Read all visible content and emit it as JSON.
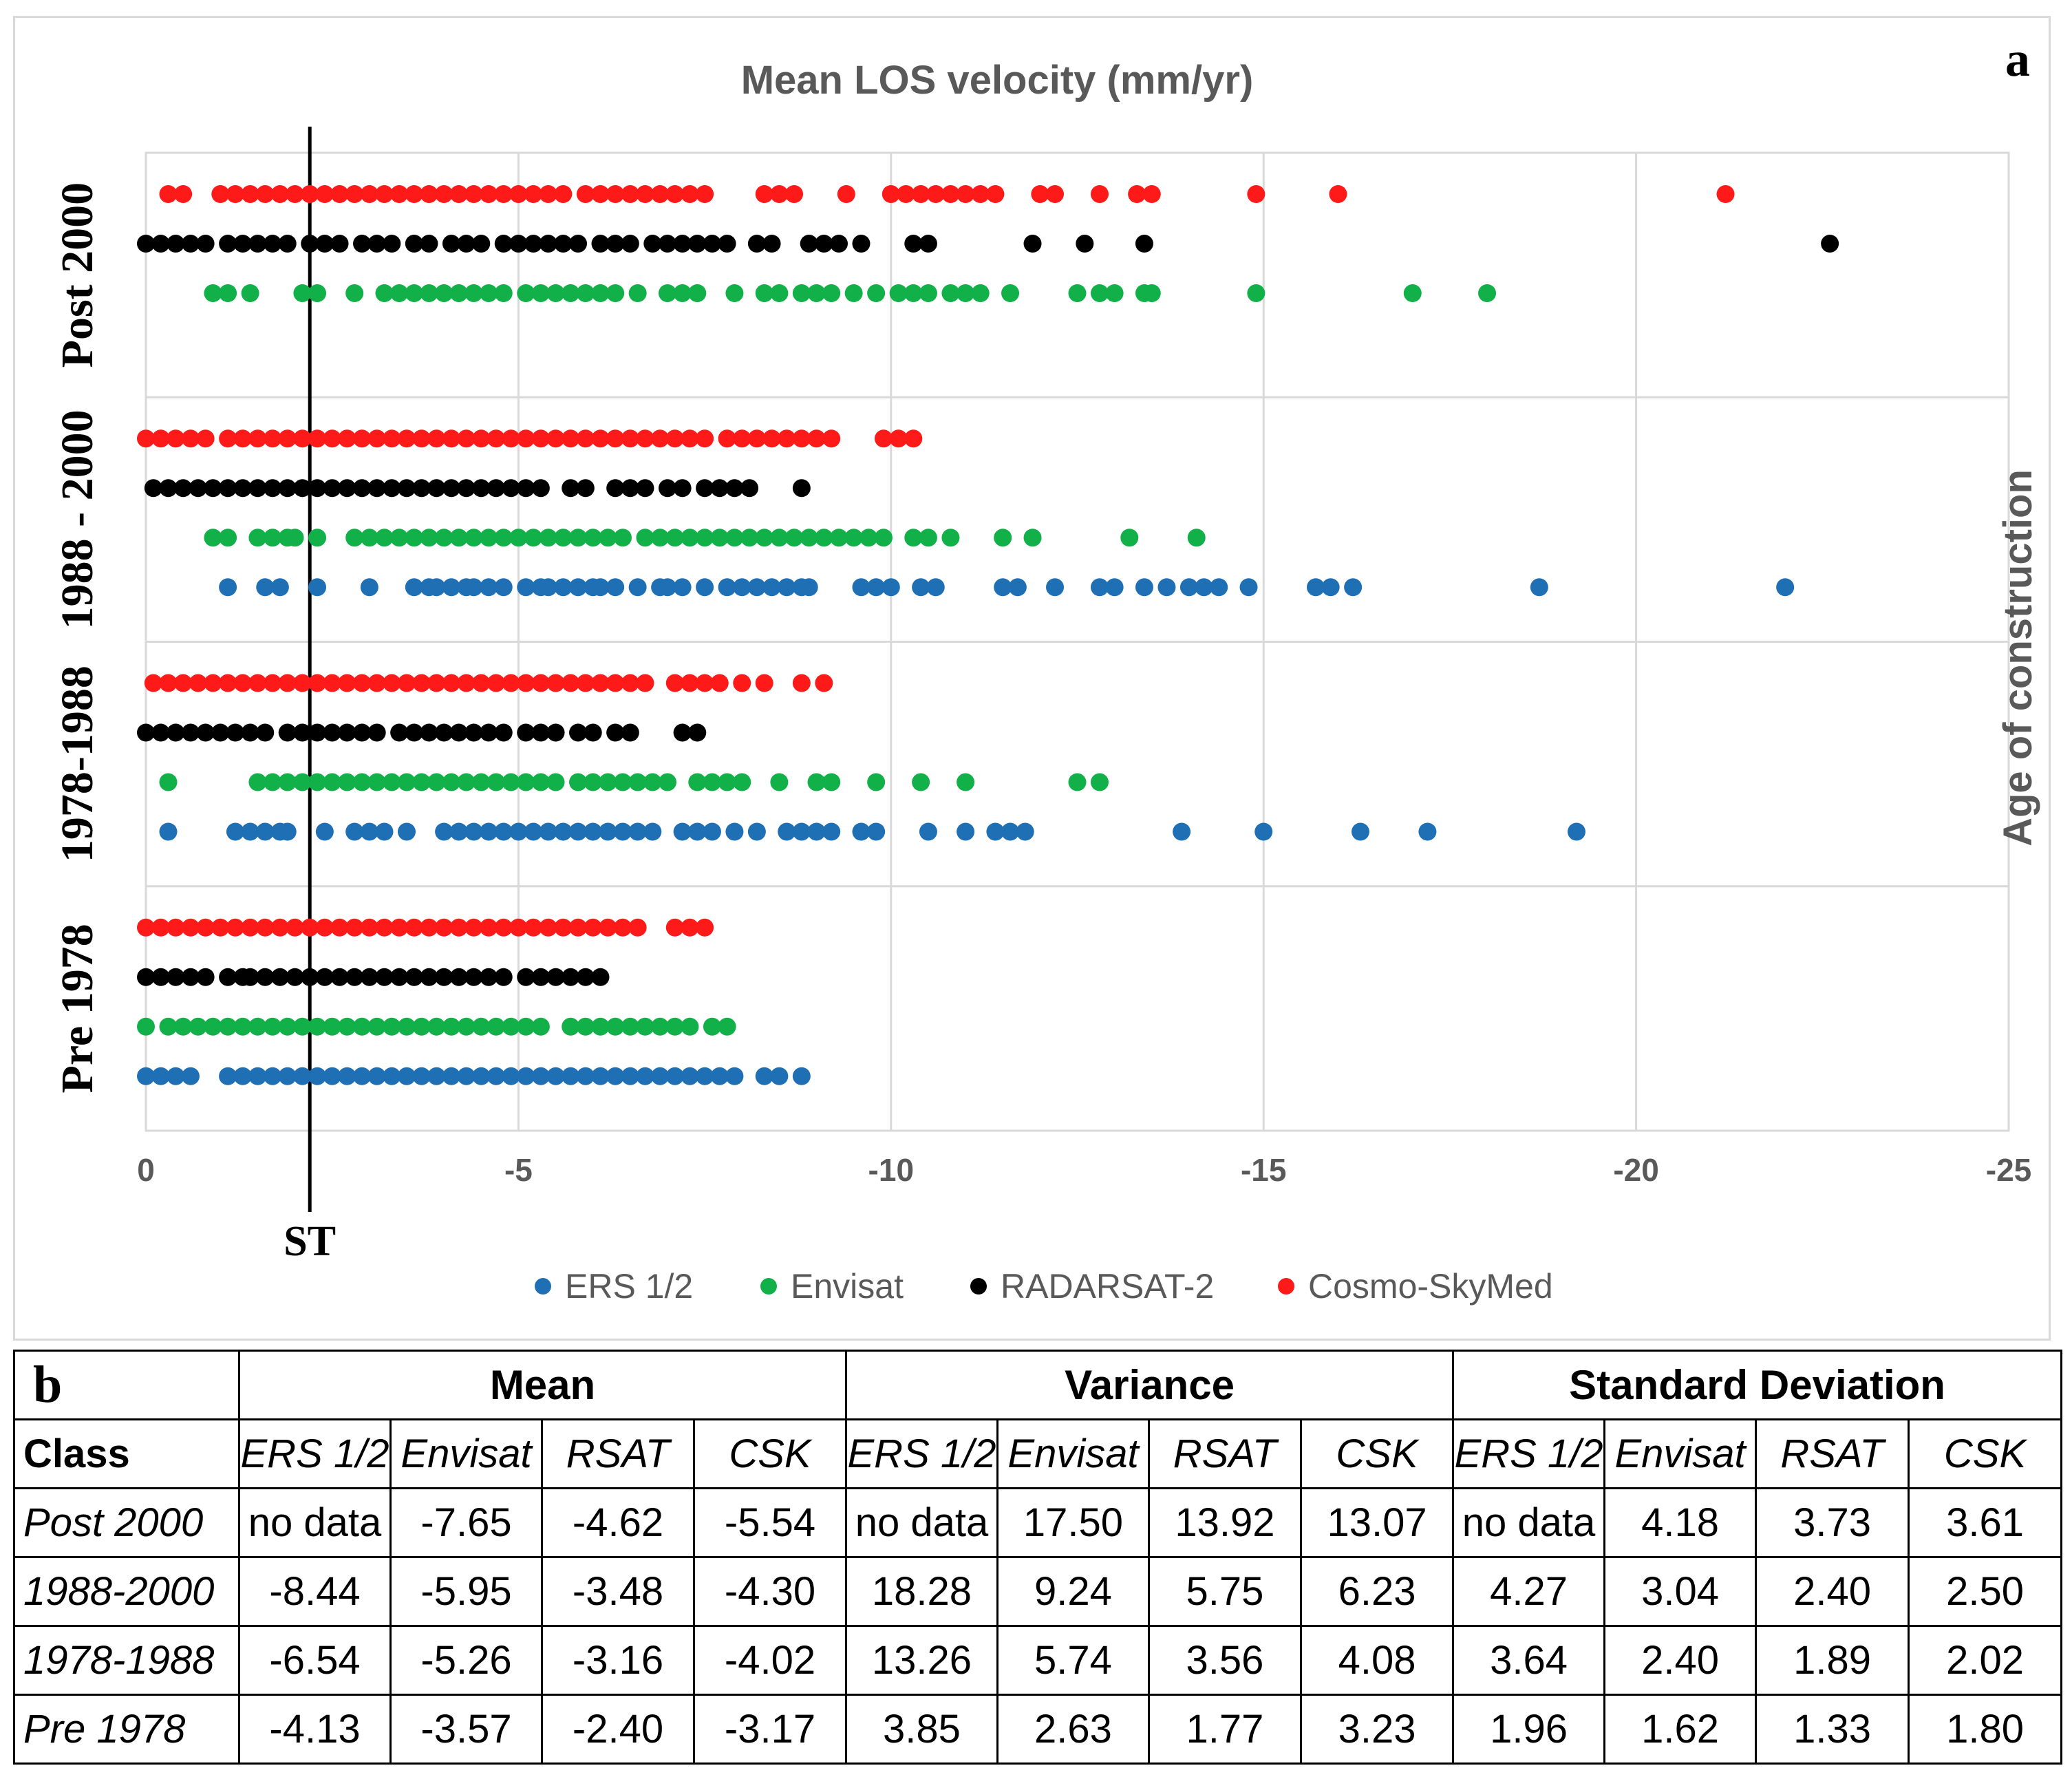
{
  "chart_data": {
    "type": "scatter",
    "panel_label": "a",
    "title": "Mean LOS velocity (mm/yr)",
    "xlabel": "",
    "ylabel": "Age of construction",
    "xlim": [
      0,
      -25
    ],
    "xticks": [
      0,
      -5,
      -10,
      -15,
      -20,
      -25
    ],
    "xtick_labels": [
      "0",
      "-5",
      "-10",
      "-15",
      "-20",
      "-25"
    ],
    "categories": [
      "Post 2000",
      "1988 - 2000",
      "1978-1988",
      "Pre 1978"
    ],
    "grid": true,
    "reference_line": {
      "label": "ST",
      "x": -2.2
    },
    "legend_position": "bottom",
    "series": [
      {
        "name": "ERS 1/2",
        "color": "#1f6fb5",
        "points": {
          "Post 2000": [],
          "1988 - 2000": [
            -1.1,
            -1.6,
            -1.8,
            -2.3,
            -3.0,
            -3.6,
            -3.8,
            -3.9,
            -4.1,
            -4.3,
            -4.4,
            -4.6,
            -4.8,
            -5.1,
            -5.3,
            -5.4,
            -5.6,
            -5.8,
            -6.0,
            -6.1,
            -6.3,
            -6.6,
            -6.9,
            -7.0,
            -7.2,
            -7.5,
            -7.8,
            -8.0,
            -8.2,
            -8.4,
            -8.6,
            -8.8,
            -8.9,
            -9.6,
            -9.8,
            -10.0,
            -10.4,
            -10.6,
            -11.5,
            -11.7,
            -12.2,
            -12.8,
            -13.0,
            -13.4,
            -13.7,
            -14.0,
            -14.2,
            -14.4,
            -14.8,
            -15.7,
            -15.9,
            -16.2,
            -18.7,
            -22.0
          ],
          "1978-1988": [
            -0.3,
            -1.2,
            -1.4,
            -1.6,
            -1.8,
            -1.9,
            -2.4,
            -2.8,
            -3.0,
            -3.2,
            -3.5,
            -4.0,
            -4.2,
            -4.4,
            -4.6,
            -4.8,
            -5.0,
            -5.2,
            -5.4,
            -5.6,
            -5.8,
            -6.0,
            -6.2,
            -6.4,
            -6.6,
            -6.8,
            -7.2,
            -7.4,
            -7.6,
            -7.9,
            -8.2,
            -8.6,
            -8.8,
            -9.0,
            -9.2,
            -9.6,
            -9.8,
            -10.5,
            -11.0,
            -11.4,
            -11.6,
            -11.8,
            -13.9,
            -15.0,
            -16.3,
            -17.2,
            -19.2
          ],
          "Pre 1978": [
            0.0,
            -0.2,
            -0.4,
            -0.6,
            -1.1,
            -1.3,
            -1.5,
            -1.7,
            -1.9,
            -2.1,
            -2.3,
            -2.5,
            -2.7,
            -2.9,
            -3.1,
            -3.3,
            -3.5,
            -3.7,
            -3.9,
            -4.1,
            -4.3,
            -4.5,
            -4.7,
            -4.9,
            -5.1,
            -5.3,
            -5.5,
            -5.7,
            -5.9,
            -6.1,
            -6.3,
            -6.5,
            -6.7,
            -6.9,
            -7.1,
            -7.3,
            -7.5,
            -7.7,
            -7.9,
            -8.3,
            -8.5,
            -8.8
          ]
        }
      },
      {
        "name": "Envisat",
        "color": "#12b049",
        "points": {
          "Post 2000": [
            -0.9,
            -1.1,
            -1.4,
            -2.1,
            -2.3,
            -2.8,
            -3.2,
            -3.4,
            -3.6,
            -3.8,
            -4.0,
            -4.2,
            -4.4,
            -4.6,
            -4.8,
            -5.1,
            -5.3,
            -5.5,
            -5.7,
            -5.9,
            -6.1,
            -6.3,
            -6.6,
            -7.0,
            -7.2,
            -7.4,
            -7.9,
            -8.3,
            -8.5,
            -8.8,
            -9.0,
            -9.2,
            -9.5,
            -9.8,
            -10.1,
            -10.3,
            -10.5,
            -10.8,
            -11.0,
            -11.2,
            -11.6,
            -12.5,
            -12.8,
            -13.0,
            -13.4,
            -13.5,
            -14.9,
            -17.0,
            -18.0
          ],
          "1988 - 2000": [
            -0.9,
            -1.1,
            -1.5,
            -1.7,
            -1.9,
            -2.0,
            -2.3,
            -2.8,
            -3.0,
            -3.2,
            -3.4,
            -3.6,
            -3.8,
            -4.0,
            -4.2,
            -4.4,
            -4.6,
            -4.8,
            -5.0,
            -5.2,
            -5.4,
            -5.6,
            -5.8,
            -6.0,
            -6.2,
            -6.4,
            -6.7,
            -6.9,
            -7.1,
            -7.3,
            -7.5,
            -7.7,
            -7.9,
            -8.1,
            -8.3,
            -8.5,
            -8.7,
            -8.9,
            -9.1,
            -9.3,
            -9.5,
            -9.7,
            -9.9,
            -10.3,
            -10.5,
            -10.8,
            -11.5,
            -11.9,
            -13.2,
            -14.1
          ],
          "1978-1988": [
            -0.3,
            -1.5,
            -1.7,
            -1.9,
            -2.1,
            -2.3,
            -2.5,
            -2.7,
            -2.9,
            -3.1,
            -3.3,
            -3.5,
            -3.7,
            -3.9,
            -4.1,
            -4.3,
            -4.5,
            -4.7,
            -4.9,
            -5.1,
            -5.3,
            -5.5,
            -5.8,
            -6.0,
            -6.2,
            -6.4,
            -6.6,
            -6.8,
            -7.0,
            -7.4,
            -7.6,
            -7.8,
            -8.0,
            -8.5,
            -9.0,
            -9.2,
            -9.8,
            -10.4,
            -11.0,
            -12.5,
            -12.8
          ],
          "Pre 1978": [
            0.0,
            -0.3,
            -0.5,
            -0.7,
            -0.9,
            -1.1,
            -1.3,
            -1.5,
            -1.7,
            -1.9,
            -2.1,
            -2.3,
            -2.5,
            -2.7,
            -2.9,
            -3.1,
            -3.3,
            -3.5,
            -3.7,
            -3.9,
            -4.1,
            -4.3,
            -4.5,
            -4.7,
            -4.9,
            -5.1,
            -5.3,
            -5.7,
            -5.9,
            -6.1,
            -6.3,
            -6.5,
            -6.7,
            -6.9,
            -7.1,
            -7.3,
            -7.6,
            -7.8
          ]
        }
      },
      {
        "name": "RADARSAT-2",
        "color": "#000000",
        "points": {
          "Post 2000": [
            0.0,
            -0.2,
            -0.4,
            -0.6,
            -0.8,
            -1.1,
            -1.3,
            -1.5,
            -1.7,
            -1.9,
            -2.2,
            -2.4,
            -2.6,
            -2.9,
            -3.1,
            -3.3,
            -3.6,
            -3.8,
            -4.1,
            -4.3,
            -4.5,
            -4.8,
            -5.0,
            -5.2,
            -5.4,
            -5.6,
            -5.8,
            -6.1,
            -6.3,
            -6.5,
            -6.8,
            -7.0,
            -7.2,
            -7.4,
            -7.6,
            -7.8,
            -8.2,
            -8.4,
            -8.9,
            -9.1,
            -9.3,
            -9.6,
            -10.3,
            -10.5,
            -11.9,
            -12.6,
            -13.4,
            -22.6
          ],
          "1988 - 2000": [
            -0.1,
            -0.3,
            -0.5,
            -0.7,
            -0.9,
            -1.1,
            -1.3,
            -1.5,
            -1.7,
            -1.9,
            -2.1,
            -2.3,
            -2.5,
            -2.7,
            -2.9,
            -3.1,
            -3.3,
            -3.5,
            -3.7,
            -3.9,
            -4.1,
            -4.3,
            -4.5,
            -4.7,
            -4.9,
            -5.1,
            -5.3,
            -5.7,
            -5.9,
            -6.3,
            -6.5,
            -6.7,
            -7.0,
            -7.2,
            -7.5,
            -7.7,
            -7.9,
            -8.1,
            -8.8
          ],
          "1978-1988": [
            0.0,
            -0.2,
            -0.4,
            -0.6,
            -0.8,
            -1.0,
            -1.2,
            -1.4,
            -1.6,
            -1.9,
            -2.1,
            -2.3,
            -2.5,
            -2.7,
            -2.9,
            -3.1,
            -3.4,
            -3.6,
            -3.8,
            -4.0,
            -4.2,
            -4.4,
            -4.6,
            -4.8,
            -5.1,
            -5.3,
            -5.5,
            -5.8,
            -6.0,
            -6.3,
            -6.5,
            -7.2,
            -7.4
          ],
          "Pre 1978": [
            0.0,
            -0.2,
            -0.4,
            -0.6,
            -0.8,
            -1.1,
            -1.3,
            -1.4,
            -1.6,
            -1.8,
            -2.0,
            -2.2,
            -2.4,
            -2.6,
            -2.8,
            -3.0,
            -3.2,
            -3.4,
            -3.6,
            -3.8,
            -4.0,
            -4.2,
            -4.4,
            -4.6,
            -4.8,
            -5.1,
            -5.3,
            -5.5,
            -5.7,
            -5.9,
            -6.1
          ]
        }
      },
      {
        "name": "Cosmo-SkyMed",
        "color": "#ff1a1a",
        "points": {
          "Post 2000": [
            -0.3,
            -0.5,
            -1.0,
            -1.2,
            -1.4,
            -1.6,
            -1.8,
            -2.0,
            -2.2,
            -2.4,
            -2.6,
            -2.8,
            -3.0,
            -3.2,
            -3.4,
            -3.6,
            -3.8,
            -4.0,
            -4.2,
            -4.4,
            -4.6,
            -4.8,
            -5.0,
            -5.2,
            -5.4,
            -5.6,
            -5.9,
            -6.1,
            -6.3,
            -6.5,
            -6.7,
            -6.9,
            -7.1,
            -7.3,
            -7.5,
            -8.3,
            -8.5,
            -8.7,
            -9.4,
            -10.0,
            -10.2,
            -10.4,
            -10.6,
            -10.8,
            -11.0,
            -11.2,
            -11.4,
            -12.0,
            -12.2,
            -12.8,
            -13.3,
            -13.5,
            -14.9,
            -16.0,
            -21.2
          ],
          "1988 - 2000": [
            0.0,
            -0.2,
            -0.4,
            -0.6,
            -0.8,
            -1.1,
            -1.3,
            -1.5,
            -1.7,
            -1.9,
            -2.1,
            -2.3,
            -2.5,
            -2.7,
            -2.9,
            -3.1,
            -3.3,
            -3.5,
            -3.7,
            -3.9,
            -4.1,
            -4.3,
            -4.5,
            -4.7,
            -4.9,
            -5.1,
            -5.3,
            -5.5,
            -5.7,
            -5.9,
            -6.1,
            -6.3,
            -6.5,
            -6.7,
            -6.9,
            -7.1,
            -7.3,
            -7.5,
            -7.8,
            -8.0,
            -8.2,
            -8.4,
            -8.6,
            -8.8,
            -9.0,
            -9.2,
            -9.9,
            -10.1,
            -10.3
          ],
          "1978-1988": [
            -0.1,
            -0.3,
            -0.5,
            -0.7,
            -0.9,
            -1.1,
            -1.3,
            -1.5,
            -1.7,
            -1.9,
            -2.1,
            -2.3,
            -2.5,
            -2.7,
            -2.9,
            -3.1,
            -3.3,
            -3.5,
            -3.7,
            -3.9,
            -4.1,
            -4.3,
            -4.5,
            -4.7,
            -4.9,
            -5.1,
            -5.3,
            -5.5,
            -5.7,
            -5.9,
            -6.1,
            -6.3,
            -6.5,
            -6.7,
            -7.1,
            -7.3,
            -7.5,
            -7.7,
            -8.0,
            -8.3,
            -8.8,
            -9.1
          ],
          "Pre 1978": [
            0.0,
            -0.2,
            -0.4,
            -0.6,
            -0.8,
            -1.0,
            -1.2,
            -1.4,
            -1.6,
            -1.8,
            -2.0,
            -2.2,
            -2.4,
            -2.6,
            -2.8,
            -3.0,
            -3.2,
            -3.4,
            -3.6,
            -3.8,
            -4.0,
            -4.2,
            -4.4,
            -4.6,
            -4.8,
            -5.0,
            -5.2,
            -5.4,
            -5.6,
            -5.8,
            -6.0,
            -6.2,
            -6.4,
            -6.6,
            -7.1,
            -7.3,
            -7.5
          ]
        }
      }
    ]
  },
  "table": {
    "panel_label": "b",
    "groups": [
      "Mean",
      "Variance",
      "Standard Deviation"
    ],
    "class_header": "Class",
    "sub_headers": [
      "ERS 1/2",
      "Envisat",
      "RSAT",
      "CSK"
    ],
    "rows": [
      {
        "class": "Post 2000",
        "values": [
          "no data",
          "-7.65",
          "-4.62",
          "-5.54",
          "no data",
          "17.50",
          "13.92",
          "13.07",
          "no data",
          "4.18",
          "3.73",
          "3.61"
        ]
      },
      {
        "class": "1988-2000",
        "values": [
          "-8.44",
          "-5.95",
          "-3.48",
          "-4.30",
          "18.28",
          "9.24",
          "5.75",
          "6.23",
          "4.27",
          "3.04",
          "2.40",
          "2.50"
        ]
      },
      {
        "class": "1978-1988",
        "values": [
          "-6.54",
          "-5.26",
          "-3.16",
          "-4.02",
          "13.26",
          "5.74",
          "3.56",
          "4.08",
          "3.64",
          "2.40",
          "1.89",
          "2.02"
        ]
      },
      {
        "class": "Pre 1978",
        "values": [
          "-4.13",
          "-3.57",
          "-2.40",
          "-3.17",
          "3.85",
          "2.63",
          "1.77",
          "3.23",
          "1.96",
          "1.62",
          "1.33",
          "1.80"
        ]
      }
    ]
  }
}
